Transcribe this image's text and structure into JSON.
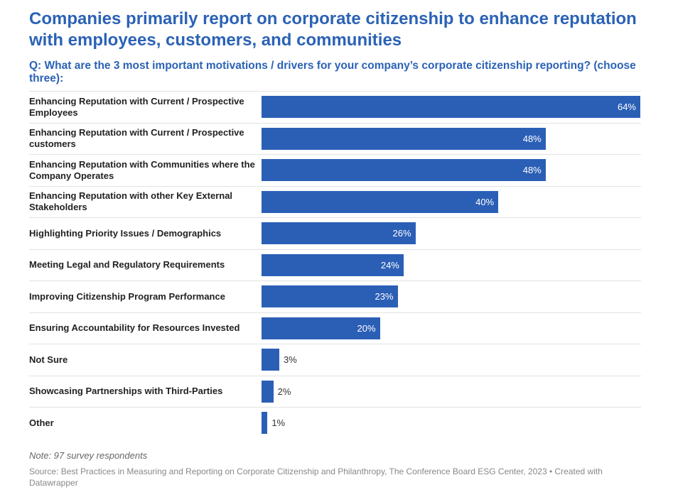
{
  "chart_data": {
    "type": "bar",
    "title": "Companies primarily report on corporate citizenship to enhance reputation with employees, customers, and communities",
    "subtitle": "Q: What are the 3 most important motivations / drivers for your company’s corporate citizenship reporting? (choose three):",
    "categories": [
      "Enhancing Reputation with Current / Prospective Employees",
      "Enhancing Reputation with Current / Prospective customers",
      "Enhancing Reputation with Communities where the Company Operates",
      "Enhancing Reputation with other Key External Stakeholders",
      "Highlighting Priority Issues / Demographics",
      "Meeting Legal and Regulatory Requirements",
      "Improving Citizenship Program Performance",
      "Ensuring Accountability for Resources Invested",
      "Not Sure",
      "Showcasing Partnerships with Third-Parties",
      "Other"
    ],
    "values": [
      64,
      48,
      48,
      40,
      26,
      24,
      23,
      20,
      3,
      2,
      1
    ],
    "value_labels": [
      "64%",
      "48%",
      "48%",
      "40%",
      "26%",
      "24%",
      "23%",
      "20%",
      "3%",
      "2%",
      "1%"
    ],
    "color": "#2b5fb6",
    "note": "Note: 97 survey respondents",
    "source": "Source: Best Practices in Measuring and Reporting on Corporate Citizenship and Philanthropy, The Conference Board ESG Center, 2023 • Created with Datawrapper"
  }
}
